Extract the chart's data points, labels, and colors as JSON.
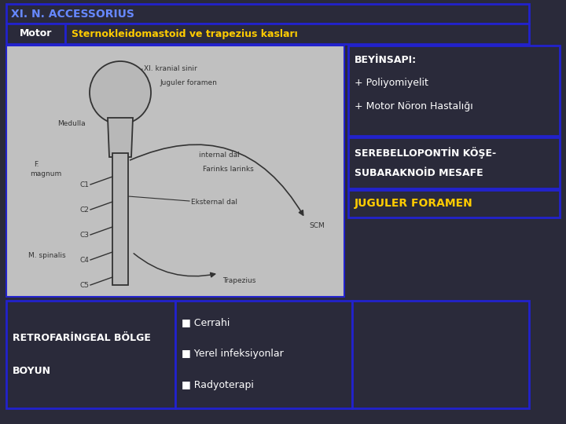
{
  "background_color": "#2a2a3a",
  "title_text": "XI. N. ACCESSORIUS",
  "title_bg": "#2a2a3a",
  "title_border": "#2222cc",
  "title_color": "#6688ff",
  "header_row_label": "Motor",
  "header_row_label_color": "#ffffff",
  "header_row_label_bg": "#2a2a3a",
  "header_row_value": "Sternokleidomastoid ve trapezius kasları",
  "header_row_value_color": "#ffcc00",
  "header_row_bg": "#2a2a3a",
  "right_box1_lines": [
    "BEYİNSAPI:",
    "+ Poliyomiyelit",
    "+ Motor Nöron Hastalığı"
  ],
  "right_box1_color": "#ffffff",
  "right_box1_border": "#2222cc",
  "right_box1_bg": "#2a2a3a",
  "right_box2_line1": "SEREBELLOPONTİN KÖŞE-",
  "right_box2_line2": "SUBARAKNOİD MESAFE",
  "right_box2_color": "#ffffff",
  "right_box2_border": "#2222cc",
  "right_box2_bg": "#2a2a3a",
  "right_box3_text": "JUGULER FORAMEN",
  "right_box3_color": "#ffcc00",
  "right_box3_border": "#2222cc",
  "right_box3_bg": "#2a2a3a",
  "bottom_left_line1": "RETROFARİNGEAL BÖLGE",
  "bottom_left_line2": "BOYUN",
  "bottom_left_color": "#ffffff",
  "bottom_left_bg": "#2a2a3a",
  "bottom_left_border": "#2222cc",
  "bottom_mid_items": [
    "■ Cerrahi",
    "■ Yerel infeksiyonlar",
    "■ Radyoterapi"
  ],
  "bottom_mid_color": "#ffffff",
  "bottom_mid_bg": "#2a2a3a",
  "bottom_mid_border": "#2222cc",
  "bottom_right_bg": "#2a2a3a",
  "bottom_right_border": "#2222cc",
  "img_bg": "#c0c0c0",
  "img_border": "#2222cc",
  "sketch_color": "#333333",
  "sketch_fill": "#b8b8b8"
}
